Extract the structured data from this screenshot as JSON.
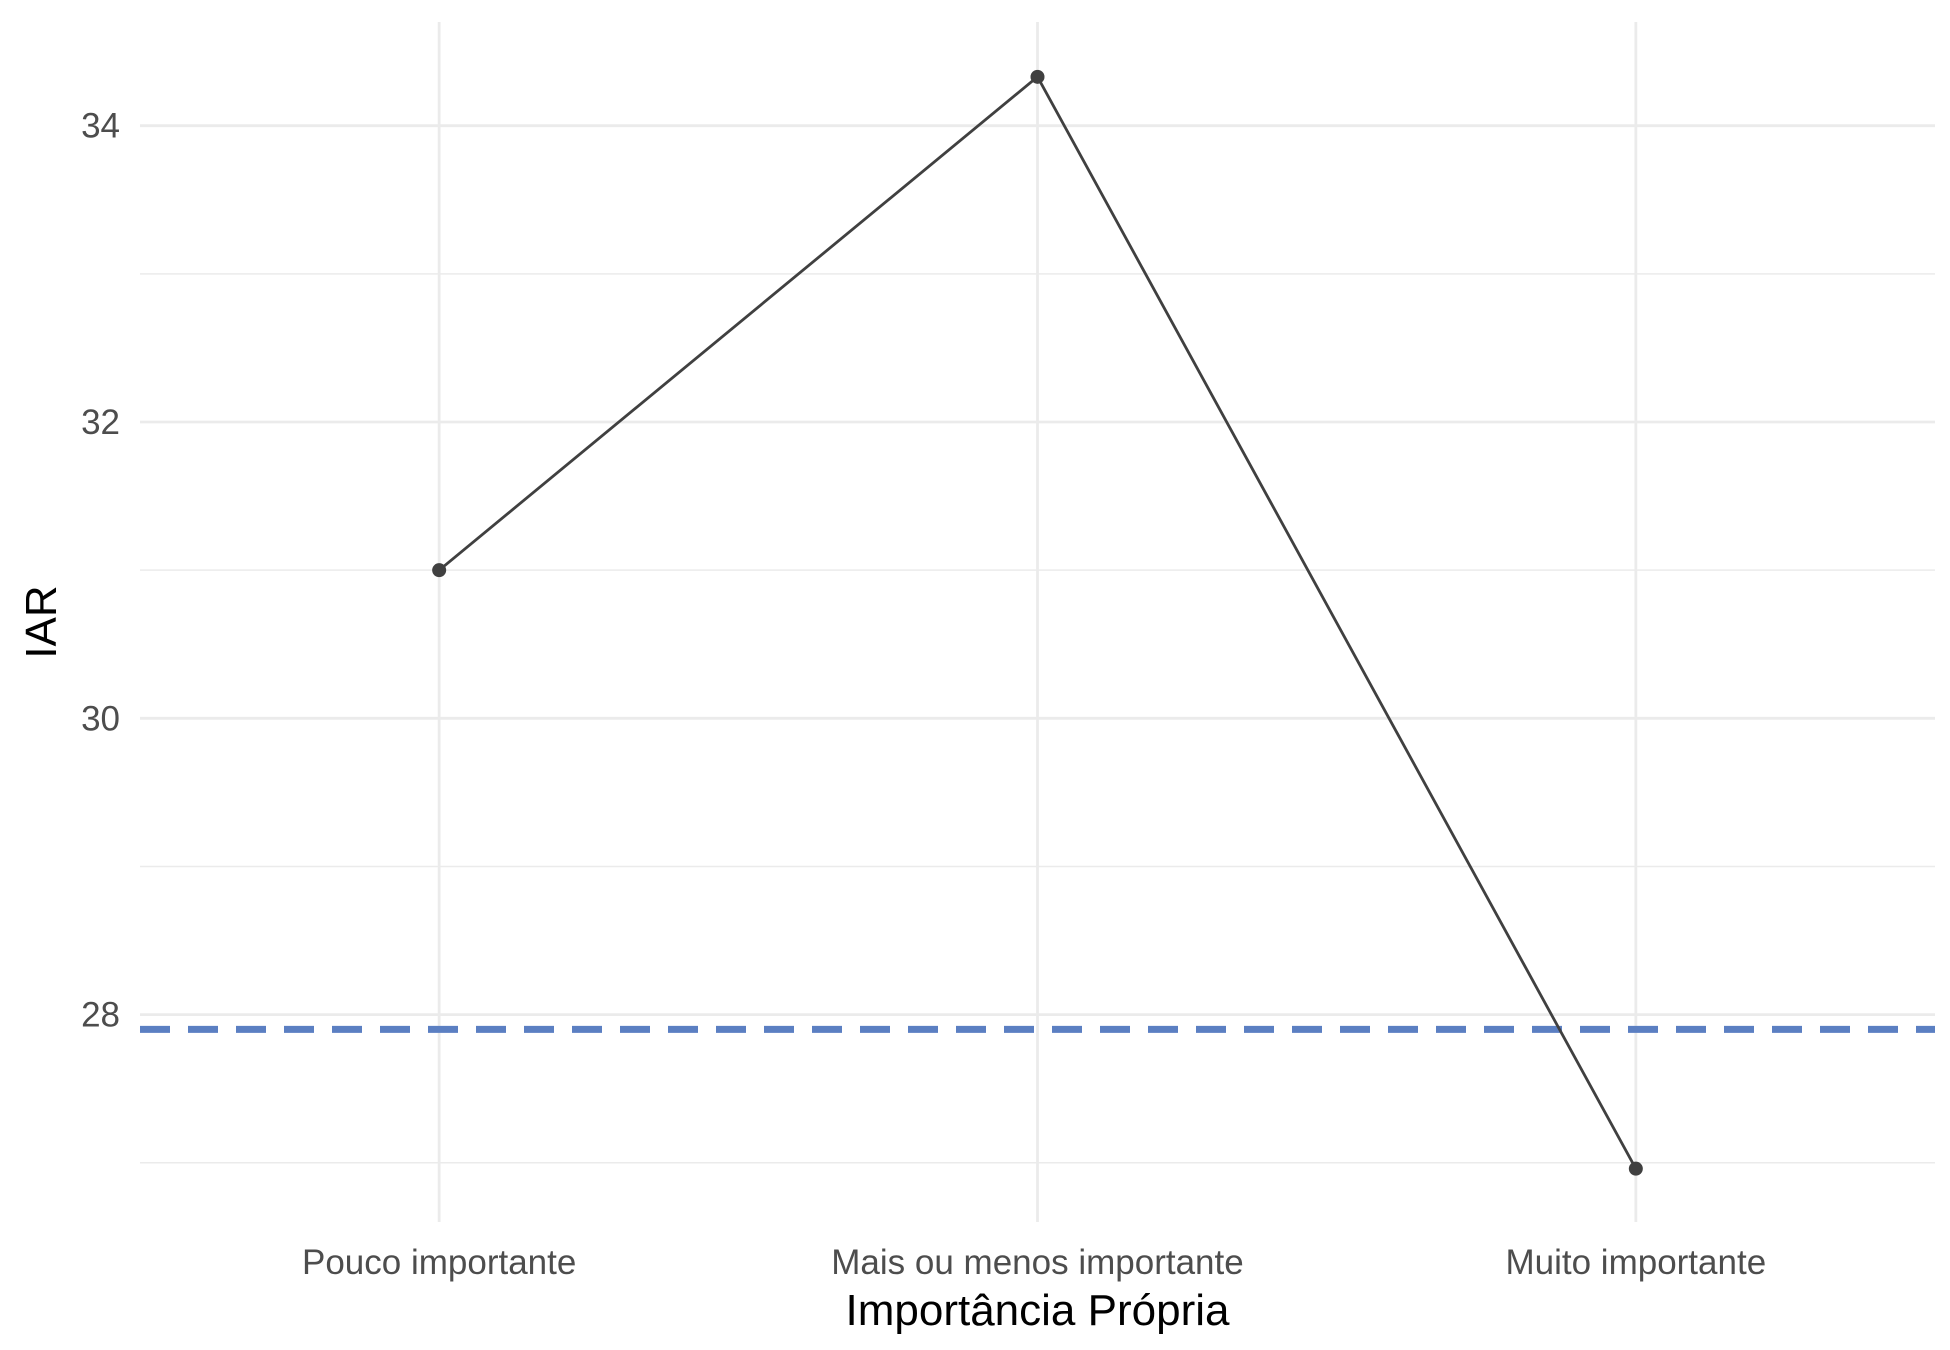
{
  "chart_data": {
    "type": "line",
    "categories": [
      "Pouco importante",
      "Mais ou menos importante",
      "Muito importante"
    ],
    "series": [
      {
        "values": [
          31.0,
          34.33,
          26.96
        ]
      }
    ],
    "reference_line": {
      "y": 27.9,
      "style": "dashed",
      "color": "#5B7FC2"
    },
    "xlabel": "Importância Própria",
    "ylabel": "IAR",
    "ylim": [
      26.6,
      34.7
    ],
    "yticks": [
      28,
      30,
      32,
      34
    ],
    "grid": true,
    "line_color": "#404040",
    "point_color": "#404040"
  }
}
